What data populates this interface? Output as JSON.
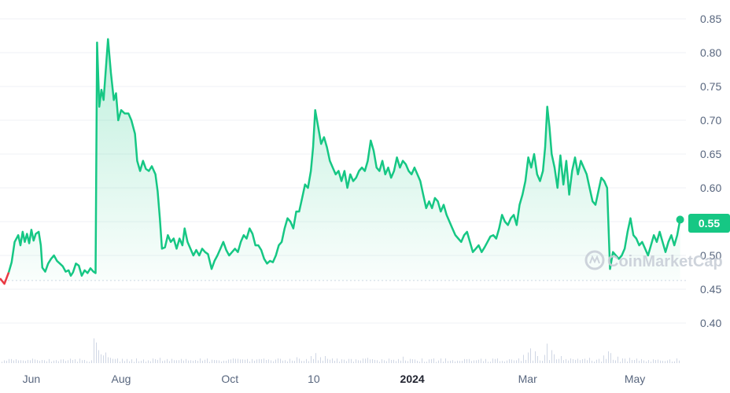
{
  "chart_data": {
    "type": "line",
    "subtype": "area-with-volume",
    "y_ticks": [
      "0.85",
      "0.80",
      "0.75",
      "0.70",
      "0.65",
      "0.60",
      "0.55",
      "0.50",
      "0.45",
      "0.40"
    ],
    "y_tick_values": [
      0.85,
      0.8,
      0.75,
      0.7,
      0.65,
      0.6,
      0.55,
      0.5,
      0.45,
      0.4
    ],
    "ylim": [
      0.345,
      0.875
    ],
    "x_ticks": [
      {
        "label": "Jun",
        "t": 0.043,
        "bold": false
      },
      {
        "label": "Aug",
        "t": 0.166,
        "bold": false
      },
      {
        "label": "Oct",
        "t": 0.315,
        "bold": false
      },
      {
        "label": "10",
        "t": 0.43,
        "bold": false
      },
      {
        "label": "2024",
        "t": 0.565,
        "bold": true
      },
      {
        "label": "Mar",
        "t": 0.723,
        "bold": false
      },
      {
        "label": "May",
        "t": 0.87,
        "bold": false
      }
    ],
    "current_price": "0.55",
    "baseline_value": 0.463,
    "grid": true,
    "colors": {
      "line": "#16c784",
      "negative": "#ea3943",
      "area_top": "#16c784",
      "volume": "#cfd6e4",
      "grid": "#eff2f5",
      "axis_text": "#58667e",
      "baseline": "#cfd6e4"
    },
    "series": [
      {
        "values": [
          [
            0.0,
            0.466
          ],
          [
            0.006,
            0.458
          ],
          [
            0.012,
            0.475
          ],
          [
            0.016,
            0.49
          ],
          [
            0.02,
            0.52
          ],
          [
            0.025,
            0.53
          ],
          [
            0.028,
            0.515
          ],
          [
            0.031,
            0.535
          ],
          [
            0.034,
            0.52
          ],
          [
            0.037,
            0.532
          ],
          [
            0.04,
            0.518
          ],
          [
            0.043,
            0.538
          ],
          [
            0.046,
            0.522
          ],
          [
            0.049,
            0.532
          ],
          [
            0.053,
            0.535
          ],
          [
            0.056,
            0.515
          ],
          [
            0.058,
            0.482
          ],
          [
            0.062,
            0.476
          ],
          [
            0.066,
            0.488
          ],
          [
            0.07,
            0.495
          ],
          [
            0.074,
            0.5
          ],
          [
            0.078,
            0.492
          ],
          [
            0.082,
            0.488
          ],
          [
            0.086,
            0.484
          ],
          [
            0.09,
            0.476
          ],
          [
            0.094,
            0.478
          ],
          [
            0.097,
            0.47
          ],
          [
            0.1,
            0.475
          ],
          [
            0.104,
            0.488
          ],
          [
            0.108,
            0.485
          ],
          [
            0.112,
            0.47
          ],
          [
            0.116,
            0.478
          ],
          [
            0.12,
            0.474
          ],
          [
            0.124,
            0.481
          ],
          [
            0.128,
            0.476
          ],
          [
            0.131,
            0.474
          ],
          [
            0.133,
            0.815
          ],
          [
            0.136,
            0.72
          ],
          [
            0.139,
            0.745
          ],
          [
            0.142,
            0.73
          ],
          [
            0.145,
            0.775
          ],
          [
            0.148,
            0.82
          ],
          [
            0.152,
            0.77
          ],
          [
            0.156,
            0.73
          ],
          [
            0.159,
            0.74
          ],
          [
            0.162,
            0.7
          ],
          [
            0.166,
            0.715
          ],
          [
            0.171,
            0.71
          ],
          [
            0.176,
            0.71
          ],
          [
            0.18,
            0.7
          ],
          [
            0.185,
            0.68
          ],
          [
            0.188,
            0.64
          ],
          [
            0.192,
            0.625
          ],
          [
            0.196,
            0.64
          ],
          [
            0.2,
            0.628
          ],
          [
            0.204,
            0.625
          ],
          [
            0.208,
            0.632
          ],
          [
            0.213,
            0.62
          ],
          [
            0.216,
            0.595
          ],
          [
            0.219,
            0.555
          ],
          [
            0.222,
            0.51
          ],
          [
            0.226,
            0.512
          ],
          [
            0.23,
            0.53
          ],
          [
            0.234,
            0.52
          ],
          [
            0.238,
            0.525
          ],
          [
            0.242,
            0.51
          ],
          [
            0.246,
            0.525
          ],
          [
            0.25,
            0.515
          ],
          [
            0.253,
            0.54
          ],
          [
            0.257,
            0.52
          ],
          [
            0.261,
            0.51
          ],
          [
            0.265,
            0.5
          ],
          [
            0.269,
            0.508
          ],
          [
            0.273,
            0.5
          ],
          [
            0.277,
            0.51
          ],
          [
            0.281,
            0.505
          ],
          [
            0.285,
            0.502
          ],
          [
            0.29,
            0.48
          ],
          [
            0.294,
            0.492
          ],
          [
            0.298,
            0.5
          ],
          [
            0.302,
            0.51
          ],
          [
            0.306,
            0.52
          ],
          [
            0.31,
            0.508
          ],
          [
            0.314,
            0.5
          ],
          [
            0.318,
            0.505
          ],
          [
            0.322,
            0.51
          ],
          [
            0.326,
            0.505
          ],
          [
            0.33,
            0.52
          ],
          [
            0.334,
            0.53
          ],
          [
            0.338,
            0.525
          ],
          [
            0.342,
            0.54
          ],
          [
            0.346,
            0.532
          ],
          [
            0.35,
            0.515
          ],
          [
            0.354,
            0.515
          ],
          [
            0.358,
            0.508
          ],
          [
            0.362,
            0.495
          ],
          [
            0.366,
            0.488
          ],
          [
            0.37,
            0.492
          ],
          [
            0.374,
            0.49
          ],
          [
            0.378,
            0.5
          ],
          [
            0.382,
            0.515
          ],
          [
            0.386,
            0.52
          ],
          [
            0.39,
            0.54
          ],
          [
            0.394,
            0.555
          ],
          [
            0.398,
            0.55
          ],
          [
            0.402,
            0.54
          ],
          [
            0.406,
            0.565
          ],
          [
            0.41,
            0.565
          ],
          [
            0.414,
            0.585
          ],
          [
            0.418,
            0.605
          ],
          [
            0.422,
            0.6
          ],
          [
            0.426,
            0.625
          ],
          [
            0.429,
            0.66
          ],
          [
            0.432,
            0.715
          ],
          [
            0.436,
            0.69
          ],
          [
            0.44,
            0.665
          ],
          [
            0.444,
            0.675
          ],
          [
            0.448,
            0.66
          ],
          [
            0.452,
            0.64
          ],
          [
            0.456,
            0.63
          ],
          [
            0.46,
            0.62
          ],
          [
            0.464,
            0.625
          ],
          [
            0.468,
            0.61
          ],
          [
            0.472,
            0.625
          ],
          [
            0.476,
            0.6
          ],
          [
            0.48,
            0.62
          ],
          [
            0.484,
            0.61
          ],
          [
            0.488,
            0.615
          ],
          [
            0.492,
            0.625
          ],
          [
            0.496,
            0.63
          ],
          [
            0.5,
            0.625
          ],
          [
            0.504,
            0.64
          ],
          [
            0.508,
            0.67
          ],
          [
            0.512,
            0.655
          ],
          [
            0.516,
            0.63
          ],
          [
            0.52,
            0.625
          ],
          [
            0.524,
            0.64
          ],
          [
            0.528,
            0.62
          ],
          [
            0.532,
            0.63
          ],
          [
            0.536,
            0.615
          ],
          [
            0.54,
            0.625
          ],
          [
            0.544,
            0.645
          ],
          [
            0.548,
            0.63
          ],
          [
            0.552,
            0.64
          ],
          [
            0.556,
            0.635
          ],
          [
            0.56,
            0.625
          ],
          [
            0.564,
            0.62
          ],
          [
            0.568,
            0.63
          ],
          [
            0.572,
            0.62
          ],
          [
            0.576,
            0.61
          ],
          [
            0.58,
            0.59
          ],
          [
            0.584,
            0.57
          ],
          [
            0.588,
            0.58
          ],
          [
            0.592,
            0.57
          ],
          [
            0.596,
            0.585
          ],
          [
            0.6,
            0.58
          ],
          [
            0.604,
            0.565
          ],
          [
            0.608,
            0.575
          ],
          [
            0.612,
            0.56
          ],
          [
            0.616,
            0.55
          ],
          [
            0.62,
            0.54
          ],
          [
            0.624,
            0.53
          ],
          [
            0.628,
            0.525
          ],
          [
            0.632,
            0.52
          ],
          [
            0.636,
            0.53
          ],
          [
            0.64,
            0.535
          ],
          [
            0.644,
            0.52
          ],
          [
            0.648,
            0.505
          ],
          [
            0.652,
            0.51
          ],
          [
            0.656,
            0.515
          ],
          [
            0.66,
            0.505
          ],
          [
            0.664,
            0.512
          ],
          [
            0.668,
            0.52
          ],
          [
            0.672,
            0.528
          ],
          [
            0.676,
            0.53
          ],
          [
            0.68,
            0.525
          ],
          [
            0.684,
            0.54
          ],
          [
            0.688,
            0.56
          ],
          [
            0.692,
            0.55
          ],
          [
            0.696,
            0.545
          ],
          [
            0.7,
            0.555
          ],
          [
            0.704,
            0.56
          ],
          [
            0.708,
            0.545
          ],
          [
            0.712,
            0.575
          ],
          [
            0.716,
            0.59
          ],
          [
            0.72,
            0.61
          ],
          [
            0.724,
            0.645
          ],
          [
            0.728,
            0.63
          ],
          [
            0.732,
            0.65
          ],
          [
            0.736,
            0.62
          ],
          [
            0.74,
            0.61
          ],
          [
            0.744,
            0.625
          ],
          [
            0.747,
            0.66
          ],
          [
            0.75,
            0.72
          ],
          [
            0.753,
            0.69
          ],
          [
            0.756,
            0.65
          ],
          [
            0.76,
            0.63
          ],
          [
            0.764,
            0.6
          ],
          [
            0.768,
            0.648
          ],
          [
            0.772,
            0.605
          ],
          [
            0.776,
            0.64
          ],
          [
            0.78,
            0.59
          ],
          [
            0.784,
            0.625
          ],
          [
            0.788,
            0.645
          ],
          [
            0.792,
            0.62
          ],
          [
            0.796,
            0.64
          ],
          [
            0.8,
            0.63
          ],
          [
            0.804,
            0.62
          ],
          [
            0.808,
            0.6
          ],
          [
            0.812,
            0.58
          ],
          [
            0.816,
            0.575
          ],
          [
            0.82,
            0.595
          ],
          [
            0.824,
            0.615
          ],
          [
            0.828,
            0.61
          ],
          [
            0.832,
            0.6
          ],
          [
            0.836,
            0.48
          ],
          [
            0.84,
            0.505
          ],
          [
            0.844,
            0.5
          ],
          [
            0.848,
            0.495
          ],
          [
            0.852,
            0.5
          ],
          [
            0.856,
            0.51
          ],
          [
            0.86,
            0.535
          ],
          [
            0.864,
            0.555
          ],
          [
            0.868,
            0.53
          ],
          [
            0.872,
            0.525
          ],
          [
            0.876,
            0.515
          ],
          [
            0.88,
            0.52
          ],
          [
            0.884,
            0.51
          ],
          [
            0.888,
            0.5
          ],
          [
            0.892,
            0.515
          ],
          [
            0.896,
            0.53
          ],
          [
            0.9,
            0.52
          ],
          [
            0.904,
            0.535
          ],
          [
            0.908,
            0.52
          ],
          [
            0.912,
            0.505
          ],
          [
            0.916,
            0.52
          ],
          [
            0.92,
            0.53
          ],
          [
            0.924,
            0.515
          ],
          [
            0.928,
            0.53
          ],
          [
            0.932,
            0.553
          ]
        ]
      }
    ],
    "volume": [
      [
        0.128,
        0.42
      ],
      [
        0.13,
        0.35
      ],
      [
        0.134,
        0.22
      ],
      [
        0.137,
        0.15
      ],
      [
        0.14,
        0.13
      ],
      [
        0.143,
        0.18
      ],
      [
        0.147,
        0.1
      ],
      [
        0.152,
        0.09
      ],
      [
        0.16,
        0.08
      ],
      [
        0.172,
        0.07
      ],
      [
        0.188,
        0.08
      ],
      [
        0.219,
        0.09
      ],
      [
        0.253,
        0.07
      ],
      [
        0.338,
        0.07
      ],
      [
        0.381,
        0.08
      ],
      [
        0.406,
        0.1
      ],
      [
        0.426,
        0.12
      ],
      [
        0.432,
        0.17
      ],
      [
        0.438,
        0.1
      ],
      [
        0.444,
        0.12
      ],
      [
        0.455,
        0.08
      ],
      [
        0.505,
        0.09
      ],
      [
        0.552,
        0.11
      ],
      [
        0.578,
        0.08
      ],
      [
        0.664,
        0.07
      ],
      [
        0.711,
        0.08
      ],
      [
        0.716,
        0.14
      ],
      [
        0.722,
        0.18
      ],
      [
        0.728,
        0.25
      ],
      [
        0.732,
        0.2
      ],
      [
        0.737,
        0.12
      ],
      [
        0.745,
        0.14
      ],
      [
        0.75,
        0.33
      ],
      [
        0.755,
        0.22
      ],
      [
        0.76,
        0.15
      ],
      [
        0.768,
        0.12
      ],
      [
        0.78,
        0.08
      ],
      [
        0.806,
        0.09
      ],
      [
        0.828,
        0.13
      ],
      [
        0.834,
        0.2
      ],
      [
        0.838,
        0.17
      ],
      [
        0.846,
        0.11
      ],
      [
        0.861,
        0.09
      ],
      [
        0.9,
        0.06
      ],
      [
        0.928,
        0.08
      ]
    ]
  },
  "watermark": "CoinMarketCap"
}
